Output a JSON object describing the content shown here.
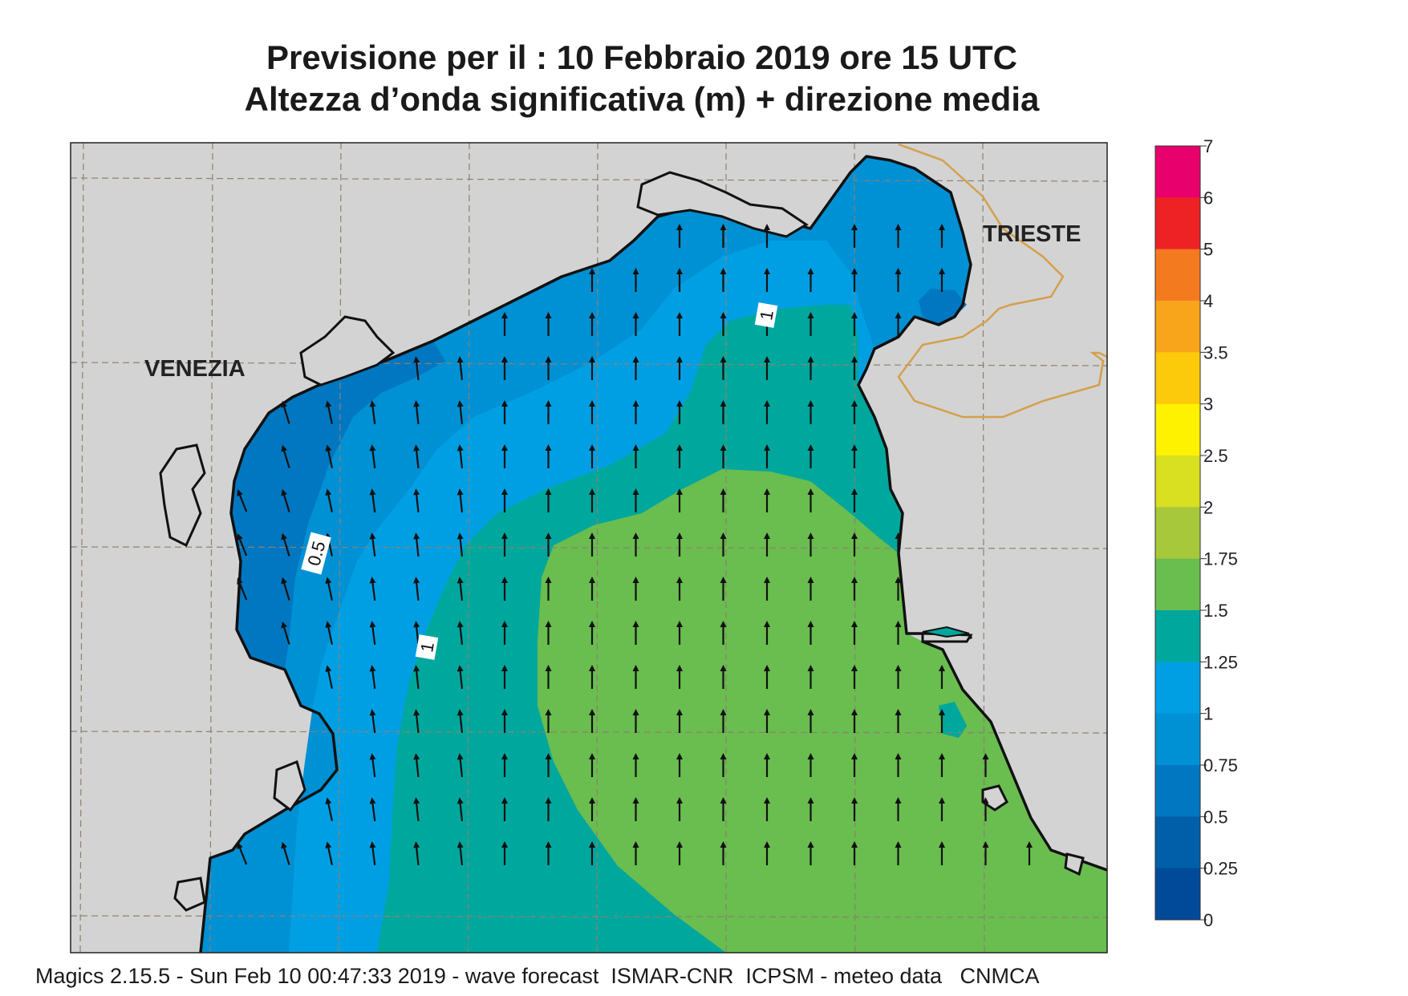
{
  "header": {
    "line1": "Previsione per il  :  10  Febbraio 2019   ore 15 UTC",
    "line2": "Altezza d’onda significativa (m) + direzione media"
  },
  "map": {
    "places": [
      {
        "name": "VENEZIA"
      },
      {
        "name": "TRIESTE"
      }
    ],
    "contour_labels": [
      "1",
      "0.5",
      "1"
    ],
    "arrow_direction": "north",
    "colors": {
      "land": "#d3d3d3",
      "coastline": "#111111",
      "border": "#d4a04a",
      "grid": "#8c8170"
    }
  },
  "legend": {
    "labels": [
      "7",
      "6",
      "5",
      "4",
      "3.5",
      "3",
      "2.5",
      "2",
      "1.75",
      "1.5",
      "1.25",
      "1",
      "0.75",
      "0.5",
      "0.25",
      "0"
    ],
    "colors": [
      "#e8006c",
      "#ee2124",
      "#f47a20",
      "#f8a51c",
      "#fdc90b",
      "#fff200",
      "#d9e021",
      "#a7c83b",
      "#6abd4f",
      "#00a79d",
      "#009fe3",
      "#0090d4",
      "#0077c0",
      "#005fa8",
      "#004a99"
    ]
  },
  "footer": {
    "text": "Magics 2.15.5 - Sun Feb 10 00:47:33 2019 - wave forecast  ISMAR-CNR  ICPSM - meteo data   CNMCA"
  }
}
